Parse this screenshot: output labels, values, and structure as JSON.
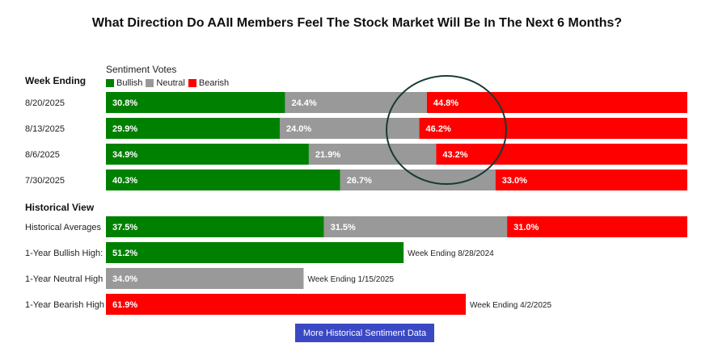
{
  "chart_data": {
    "type": "bar",
    "title": "What Direction Do AAII Members Feel The Stock Market Will Be In The Next 6 Months?",
    "legend_title": "Sentiment Votes",
    "section_weekly": "Week Ending",
    "section_historical": "Historical View",
    "legend": [
      {
        "name": "Bullish",
        "color": "#008000"
      },
      {
        "name": "Neutral",
        "color": "#999999"
      },
      {
        "name": "Bearish",
        "color": "#ff0000"
      }
    ],
    "weeks": [
      {
        "label": "8/20/2025",
        "bullish": 30.8,
        "neutral": 24.4,
        "bearish": 44.8
      },
      {
        "label": "8/13/2025",
        "bullish": 29.9,
        "neutral": 24.0,
        "bearish": 46.2
      },
      {
        "label": "8/6/2025",
        "bullish": 34.9,
        "neutral": 21.9,
        "bearish": 43.2
      },
      {
        "label": "7/30/2025",
        "bullish": 40.3,
        "neutral": 26.7,
        "bearish": 33.0
      }
    ],
    "historical_averages": {
      "label": "Historical Averages",
      "bullish": 37.5,
      "neutral": 31.5,
      "bearish": 31.0
    },
    "highs": [
      {
        "label": "1-Year Bullish High:",
        "value": 51.2,
        "color": "#008000",
        "note": "Week Ending 8/28/2024"
      },
      {
        "label": "1-Year Neutral High",
        "value": 34.0,
        "color": "#999999",
        "note": "Week Ending 1/15/2025"
      },
      {
        "label": "1-Year Bearish High",
        "value": 61.9,
        "color": "#ff0000",
        "note": "Week Ending 4/2/2025"
      }
    ],
    "value_suffix": "%",
    "xlim": [
      0,
      100
    ]
  },
  "button": {
    "label": "More Historical Sentiment Data"
  },
  "annotation": {
    "shape": "circle",
    "color": "#1a3a35"
  }
}
